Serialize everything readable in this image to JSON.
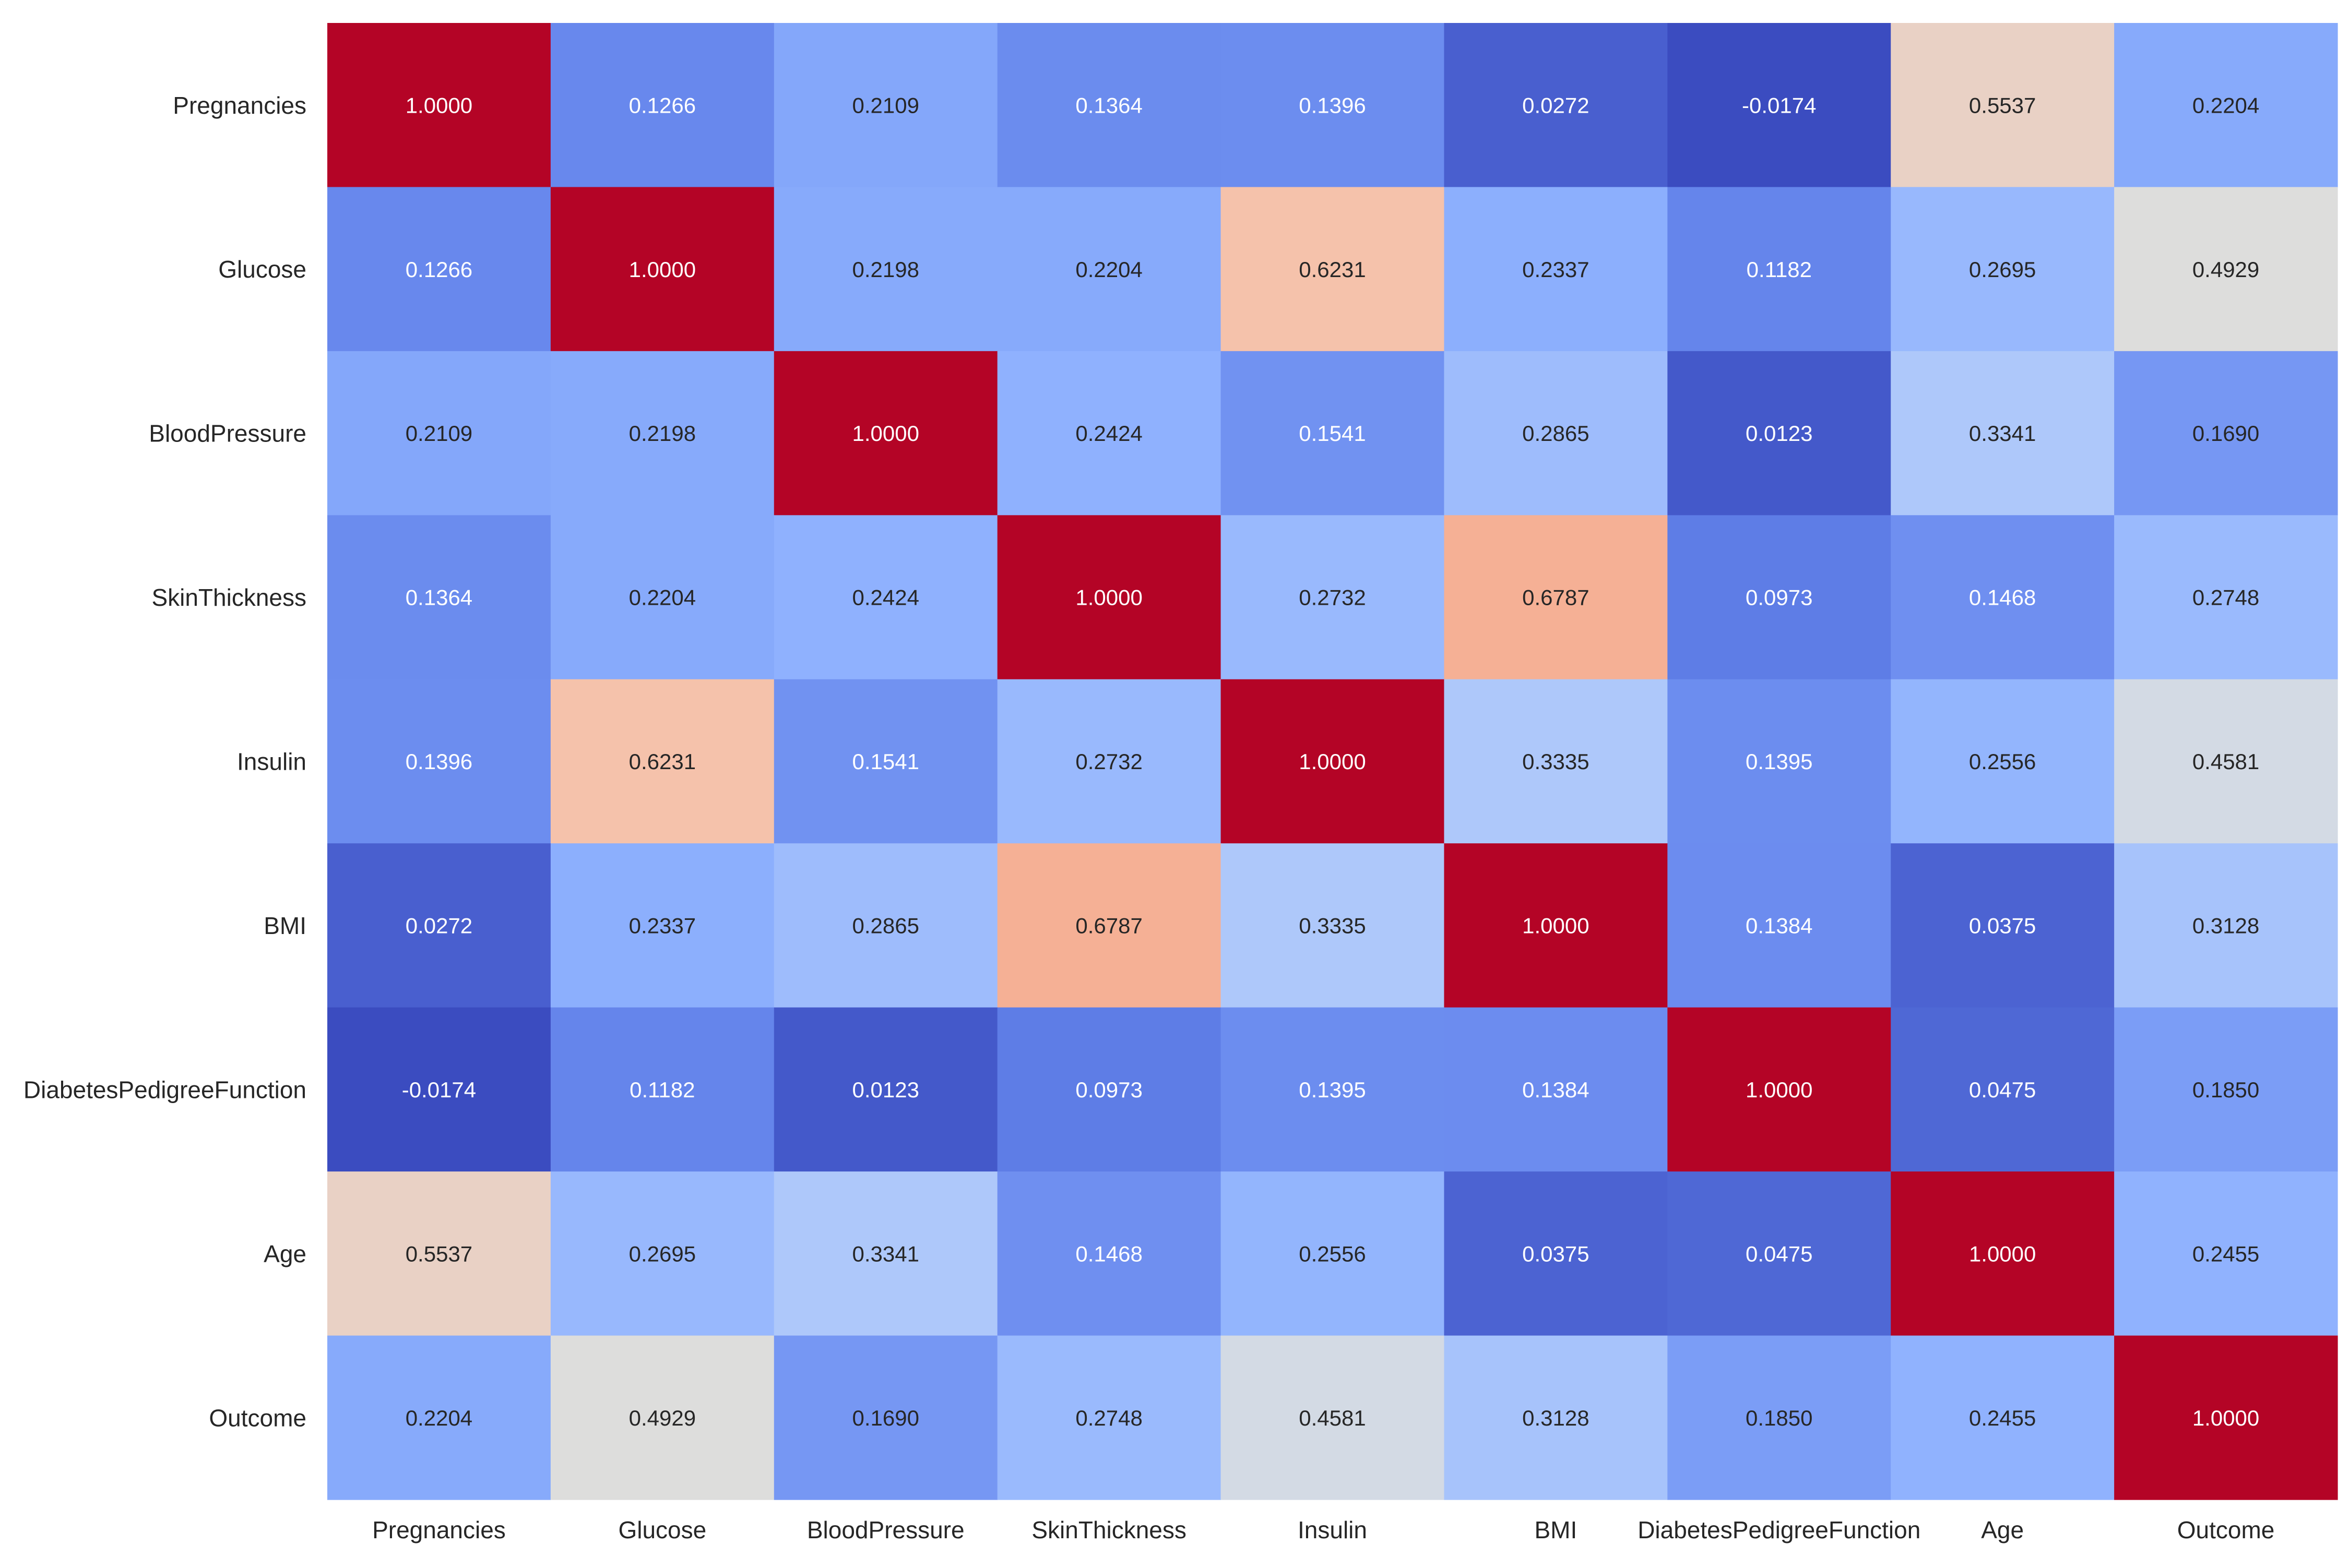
{
  "chart_data": {
    "type": "heatmap",
    "title": "",
    "xlabel": "",
    "ylabel": "",
    "grid": false,
    "legend": "none",
    "colormap": "coolwarm",
    "value_range": [
      -0.0174,
      1.0
    ],
    "categories_x": [
      "Pregnancies",
      "Glucose",
      "BloodPressure",
      "SkinThickness",
      "Insulin",
      "BMI",
      "DiabetesPedigreeFunction",
      "Age",
      "Outcome"
    ],
    "categories_y": [
      "Pregnancies",
      "Glucose",
      "BloodPressure",
      "SkinThickness",
      "Insulin",
      "BMI",
      "DiabetesPedigreeFunction",
      "Age",
      "Outcome"
    ],
    "values": [
      [
        1.0,
        0.1266,
        0.2109,
        0.1364,
        0.1396,
        0.0272,
        -0.0174,
        0.5537,
        0.2204
      ],
      [
        0.1266,
        1.0,
        0.2198,
        0.2204,
        0.6231,
        0.2337,
        0.1182,
        0.2695,
        0.4929
      ],
      [
        0.2109,
        0.2198,
        1.0,
        0.2424,
        0.1541,
        0.2865,
        0.0123,
        0.3341,
        0.169
      ],
      [
        0.1364,
        0.2204,
        0.2424,
        1.0,
        0.2732,
        0.6787,
        0.0973,
        0.1468,
        0.2748
      ],
      [
        0.1396,
        0.6231,
        0.1541,
        0.2732,
        1.0,
        0.3335,
        0.1395,
        0.2556,
        0.4581
      ],
      [
        0.0272,
        0.2337,
        0.2865,
        0.6787,
        0.3335,
        1.0,
        0.1384,
        0.0375,
        0.3128
      ],
      [
        -0.0174,
        0.1182,
        0.0123,
        0.0973,
        0.1395,
        0.1384,
        1.0,
        0.0475,
        0.185
      ],
      [
        0.5537,
        0.2695,
        0.3341,
        0.1468,
        0.2556,
        0.0375,
        0.0475,
        1.0,
        0.2455
      ],
      [
        0.2204,
        0.4929,
        0.169,
        0.2748,
        0.4581,
        0.3128,
        0.185,
        0.2455,
        1.0
      ]
    ],
    "value_format": "0.0000"
  }
}
